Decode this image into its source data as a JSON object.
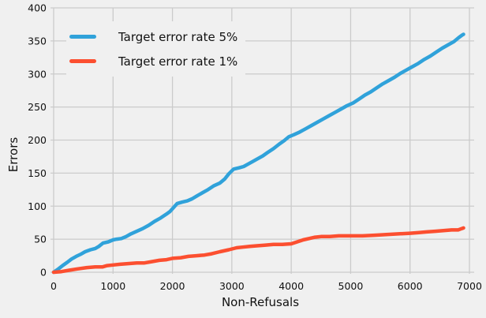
{
  "figure": {
    "background": "#f0f0f0",
    "grid_color": "#cbcbcb",
    "text_color": "#111111"
  },
  "chart_data": {
    "type": "line",
    "title": "",
    "xlabel": "Non-Refusals",
    "ylabel": "Errors",
    "xlim": [
      0,
      7000
    ],
    "ylim": [
      0,
      400
    ],
    "x_ticks": [
      0,
      1000,
      2000,
      3000,
      4000,
      5000,
      6000,
      7000
    ],
    "y_ticks": [
      0,
      50,
      100,
      150,
      200,
      250,
      300,
      350,
      400
    ],
    "grid": true,
    "legend_position": "upper-left",
    "series": [
      {
        "name": "Target error rate 5%",
        "color": "#30a2da",
        "points": [
          [
            0,
            0
          ],
          [
            80,
            5
          ],
          [
            150,
            10
          ],
          [
            230,
            15
          ],
          [
            300,
            20
          ],
          [
            380,
            24
          ],
          [
            450,
            27
          ],
          [
            530,
            31
          ],
          [
            620,
            34
          ],
          [
            700,
            36
          ],
          [
            760,
            39
          ],
          [
            830,
            44
          ],
          [
            920,
            46
          ],
          [
            1000,
            49
          ],
          [
            1060,
            50
          ],
          [
            1140,
            51
          ],
          [
            1220,
            54
          ],
          [
            1300,
            58
          ],
          [
            1400,
            62
          ],
          [
            1500,
            66
          ],
          [
            1600,
            71
          ],
          [
            1700,
            77
          ],
          [
            1800,
            82
          ],
          [
            1900,
            88
          ],
          [
            1960,
            92
          ],
          [
            2020,
            98
          ],
          [
            2080,
            104
          ],
          [
            2160,
            106
          ],
          [
            2250,
            108
          ],
          [
            2330,
            111
          ],
          [
            2420,
            116
          ],
          [
            2500,
            120
          ],
          [
            2600,
            125
          ],
          [
            2700,
            131
          ],
          [
            2800,
            135
          ],
          [
            2880,
            141
          ],
          [
            2950,
            149
          ],
          [
            3030,
            156
          ],
          [
            3120,
            158
          ],
          [
            3200,
            160
          ],
          [
            3280,
            164
          ],
          [
            3360,
            168
          ],
          [
            3440,
            172
          ],
          [
            3520,
            176
          ],
          [
            3600,
            181
          ],
          [
            3700,
            187
          ],
          [
            3800,
            194
          ],
          [
            3880,
            199
          ],
          [
            3960,
            205
          ],
          [
            4040,
            208
          ],
          [
            4140,
            212
          ],
          [
            4240,
            217
          ],
          [
            4340,
            222
          ],
          [
            4440,
            227
          ],
          [
            4540,
            232
          ],
          [
            4640,
            237
          ],
          [
            4740,
            242
          ],
          [
            4840,
            247
          ],
          [
            4940,
            252
          ],
          [
            5040,
            256
          ],
          [
            5140,
            262
          ],
          [
            5240,
            268
          ],
          [
            5340,
            273
          ],
          [
            5440,
            279
          ],
          [
            5540,
            285
          ],
          [
            5640,
            290
          ],
          [
            5740,
            295
          ],
          [
            5840,
            301
          ],
          [
            5940,
            306
          ],
          [
            6040,
            311
          ],
          [
            6140,
            316
          ],
          [
            6240,
            322
          ],
          [
            6340,
            327
          ],
          [
            6440,
            333
          ],
          [
            6540,
            339
          ],
          [
            6640,
            344
          ],
          [
            6740,
            349
          ],
          [
            6820,
            355
          ],
          [
            6880,
            359
          ],
          [
            6900,
            360
          ]
        ]
      },
      {
        "name": "Target error rate 1%",
        "color": "#fc4f30",
        "points": [
          [
            0,
            0
          ],
          [
            130,
            1
          ],
          [
            260,
            3
          ],
          [
            400,
            5
          ],
          [
            560,
            7
          ],
          [
            700,
            8
          ],
          [
            820,
            8
          ],
          [
            900,
            10
          ],
          [
            1000,
            11
          ],
          [
            1120,
            12
          ],
          [
            1250,
            13
          ],
          [
            1400,
            14
          ],
          [
            1520,
            14
          ],
          [
            1650,
            16
          ],
          [
            1780,
            18
          ],
          [
            1900,
            19
          ],
          [
            2000,
            21
          ],
          [
            2140,
            22
          ],
          [
            2270,
            24
          ],
          [
            2400,
            25
          ],
          [
            2540,
            26
          ],
          [
            2660,
            28
          ],
          [
            2800,
            31
          ],
          [
            2950,
            34
          ],
          [
            3080,
            37
          ],
          [
            3180,
            38
          ],
          [
            3300,
            39
          ],
          [
            3420,
            40
          ],
          [
            3550,
            41
          ],
          [
            3700,
            42
          ],
          [
            3850,
            42
          ],
          [
            4000,
            43
          ],
          [
            4100,
            46
          ],
          [
            4200,
            49
          ],
          [
            4300,
            51
          ],
          [
            4400,
            53
          ],
          [
            4500,
            54
          ],
          [
            4650,
            54
          ],
          [
            4800,
            55
          ],
          [
            5000,
            55
          ],
          [
            5200,
            55
          ],
          [
            5400,
            56
          ],
          [
            5600,
            57
          ],
          [
            5800,
            58
          ],
          [
            6000,
            59
          ],
          [
            6150,
            60
          ],
          [
            6280,
            61
          ],
          [
            6420,
            62
          ],
          [
            6560,
            63
          ],
          [
            6700,
            64
          ],
          [
            6810,
            64
          ],
          [
            6870,
            66
          ],
          [
            6900,
            67
          ]
        ]
      }
    ]
  }
}
